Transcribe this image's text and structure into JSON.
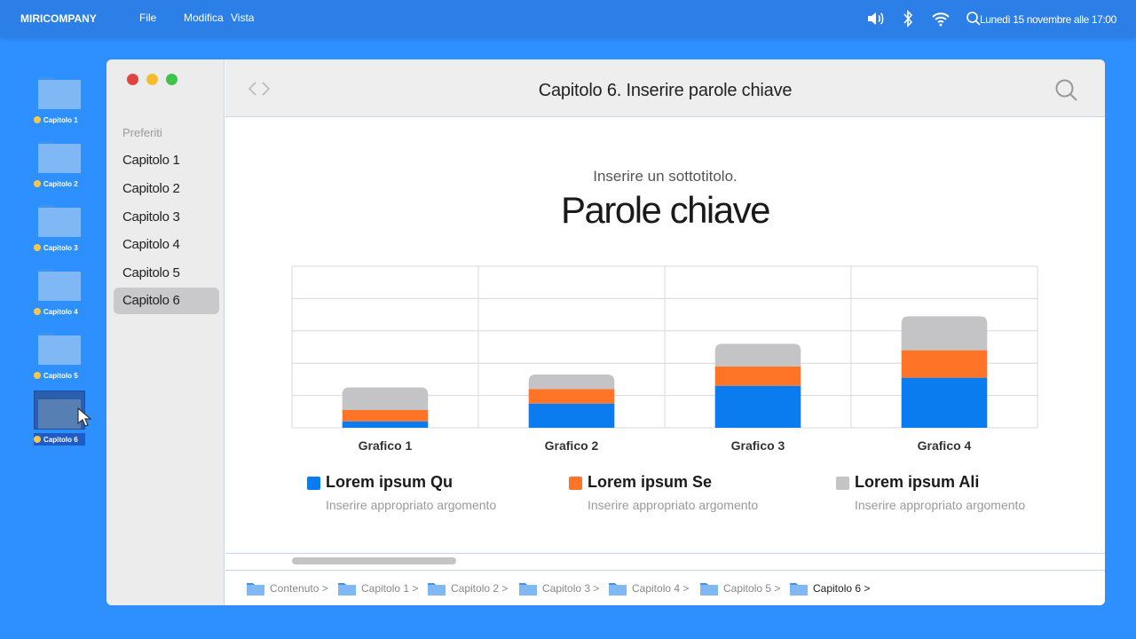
{
  "menubar": {
    "brand": "MIRICOMPANY",
    "menus": [
      "File",
      "Modifica",
      "Vista"
    ],
    "datetime": "Lunedì 15 novembre alle 17:00"
  },
  "desktop": {
    "items": [
      {
        "label": "Capitolo 1"
      },
      {
        "label": "Capitolo 2"
      },
      {
        "label": "Capitolo 3"
      },
      {
        "label": "Capitolo 4"
      },
      {
        "label": "Capitolo 5"
      },
      {
        "label": "Capitolo 6"
      }
    ]
  },
  "sidebar": {
    "section_title": "Preferiti",
    "items": [
      {
        "label": "Capitolo 1"
      },
      {
        "label": "Capitolo 2"
      },
      {
        "label": "Capitolo 3"
      },
      {
        "label": "Capitolo 4"
      },
      {
        "label": "Capitolo 5"
      },
      {
        "label": "Capitolo 6"
      }
    ],
    "active_index": 5
  },
  "window": {
    "title": "Capitolo 6. Inserire parole chiave"
  },
  "content": {
    "subtitle": "Inserire un sottotitolo.",
    "title": "Parole chiave"
  },
  "chart_data": {
    "type": "bar",
    "stacked": true,
    "categories": [
      "Grafico 1",
      "Grafico 2",
      "Grafico 3",
      "Grafico 4"
    ],
    "series": [
      {
        "name": "Lorem ipsum Qu",
        "color": "#0a7cf0",
        "values": [
          0.4,
          1.5,
          2.6,
          3.1
        ]
      },
      {
        "name": "Lorem ipsum Se",
        "color": "#ff7426",
        "values": [
          0.7,
          0.9,
          1.2,
          1.7
        ]
      },
      {
        "name": "Lorem ipsum Ali",
        "color": "#c4c4c6",
        "values": [
          1.4,
          0.9,
          1.4,
          2.1
        ]
      }
    ],
    "ylim": [
      0,
      10
    ],
    "grid": true,
    "legend_position": "bottom"
  },
  "legend": {
    "description": "Inserire appropriato argomento"
  },
  "pathbar": {
    "crumbs": [
      "Contenuto >",
      "Capitolo 1 >",
      "Capitolo 2 >",
      "Capitolo 3 >",
      "Capitolo 4 >",
      "Capitolo 5 >",
      "Capitolo 6 >"
    ]
  },
  "colors": {
    "desktop_bg": "#2e8fff",
    "menubar_bg": "#2b7fe6",
    "folder": "#7fb8f5",
    "close": "#e0443e",
    "minimize": "#f5bd2e",
    "zoom": "#3ec449"
  },
  "icons": {
    "status": [
      "volume-icon",
      "bluetooth-icon",
      "wifi-icon",
      "search-icon"
    ]
  }
}
